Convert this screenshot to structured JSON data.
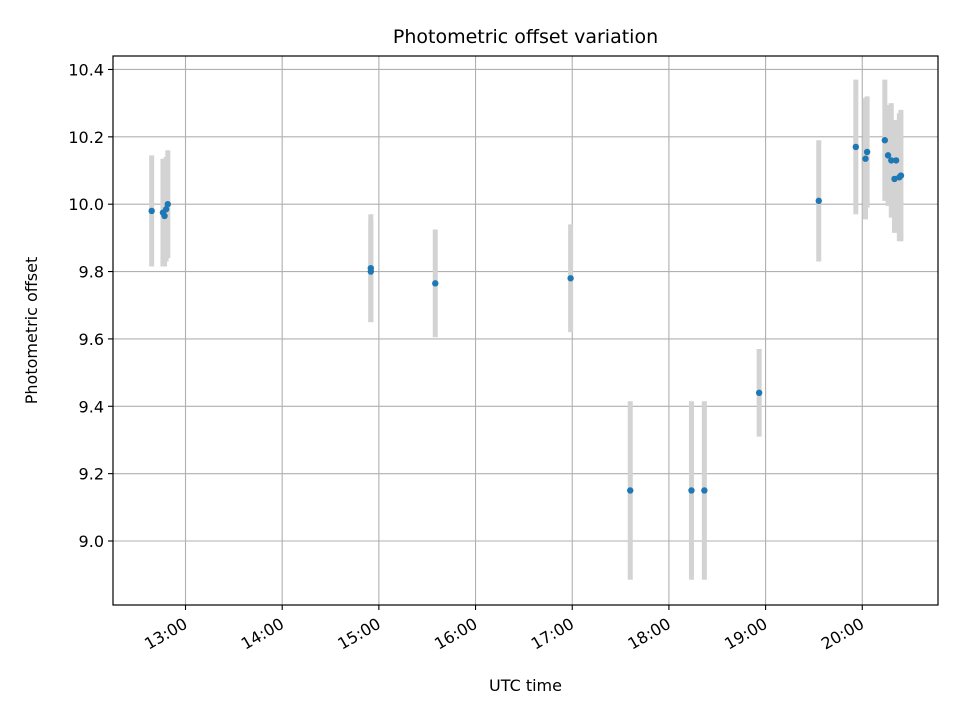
{
  "chart_data": {
    "type": "scatter",
    "title": "Photometric offset variation",
    "xlabel": "UTC time",
    "ylabel": "Photometric offset",
    "x_axis_kind": "time-of-day",
    "xlim": [
      "12:15",
      "20:47"
    ],
    "ylim": [
      8.81,
      10.44
    ],
    "x_ticks": [
      "13:00",
      "14:00",
      "15:00",
      "16:00",
      "17:00",
      "18:00",
      "19:00",
      "20:00"
    ],
    "y_ticks": [
      "9.0",
      "9.2",
      "9.4",
      "9.6",
      "9.8",
      "10.0",
      "10.2",
      "10.4"
    ],
    "grid": true,
    "legend": "none",
    "colors": {
      "point": "#1f77b4",
      "errorbar": "#d3d3d3",
      "grid": "#b0b0b0",
      "axes": "#000000"
    },
    "series": [
      {
        "points": [
          {
            "x": "12:39",
            "y": 9.98,
            "yerr": 0.165
          },
          {
            "x": "12:46",
            "y": 9.975,
            "yerr": 0.16
          },
          {
            "x": "12:47",
            "y": 9.965,
            "yerr": 0.15
          },
          {
            "x": "12:48",
            "y": 9.985,
            "yerr": 0.155
          },
          {
            "x": "12:49",
            "y": 10.0,
            "yerr": 0.16
          },
          {
            "x": "14:55",
            "y": 9.81,
            "yerr": 0.16
          },
          {
            "x": "14:55",
            "y": 9.8,
            "yerr": 0.15
          },
          {
            "x": "15:35",
            "y": 9.765,
            "yerr": 0.16
          },
          {
            "x": "16:59",
            "y": 9.78,
            "yerr": 0.16
          },
          {
            "x": "17:36",
            "y": 9.15,
            "yerr": 0.265
          },
          {
            "x": "18:14",
            "y": 9.15,
            "yerr": 0.265
          },
          {
            "x": "18:22",
            "y": 9.15,
            "yerr": 0.265
          },
          {
            "x": "18:56",
            "y": 9.44,
            "yerr": 0.13
          },
          {
            "x": "19:33",
            "y": 10.01,
            "yerr": 0.18
          },
          {
            "x": "19:56",
            "y": 10.17,
            "yerr": 0.2
          },
          {
            "x": "20:02",
            "y": 10.135,
            "yerr": 0.18
          },
          {
            "x": "20:03",
            "y": 10.155,
            "yerr": 0.165
          },
          {
            "x": "20:14",
            "y": 10.19,
            "yerr": 0.18
          },
          {
            "x": "20:16",
            "y": 10.145,
            "yerr": 0.15
          },
          {
            "x": "20:18",
            "y": 10.13,
            "yerr": 0.17
          },
          {
            "x": "20:20",
            "y": 10.075,
            "yerr": 0.16
          },
          {
            "x": "20:21",
            "y": 10.13,
            "yerr": 0.12
          },
          {
            "x": "20:23",
            "y": 10.08,
            "yerr": 0.19
          },
          {
            "x": "20:24",
            "y": 10.085,
            "yerr": 0.195
          }
        ]
      }
    ]
  }
}
